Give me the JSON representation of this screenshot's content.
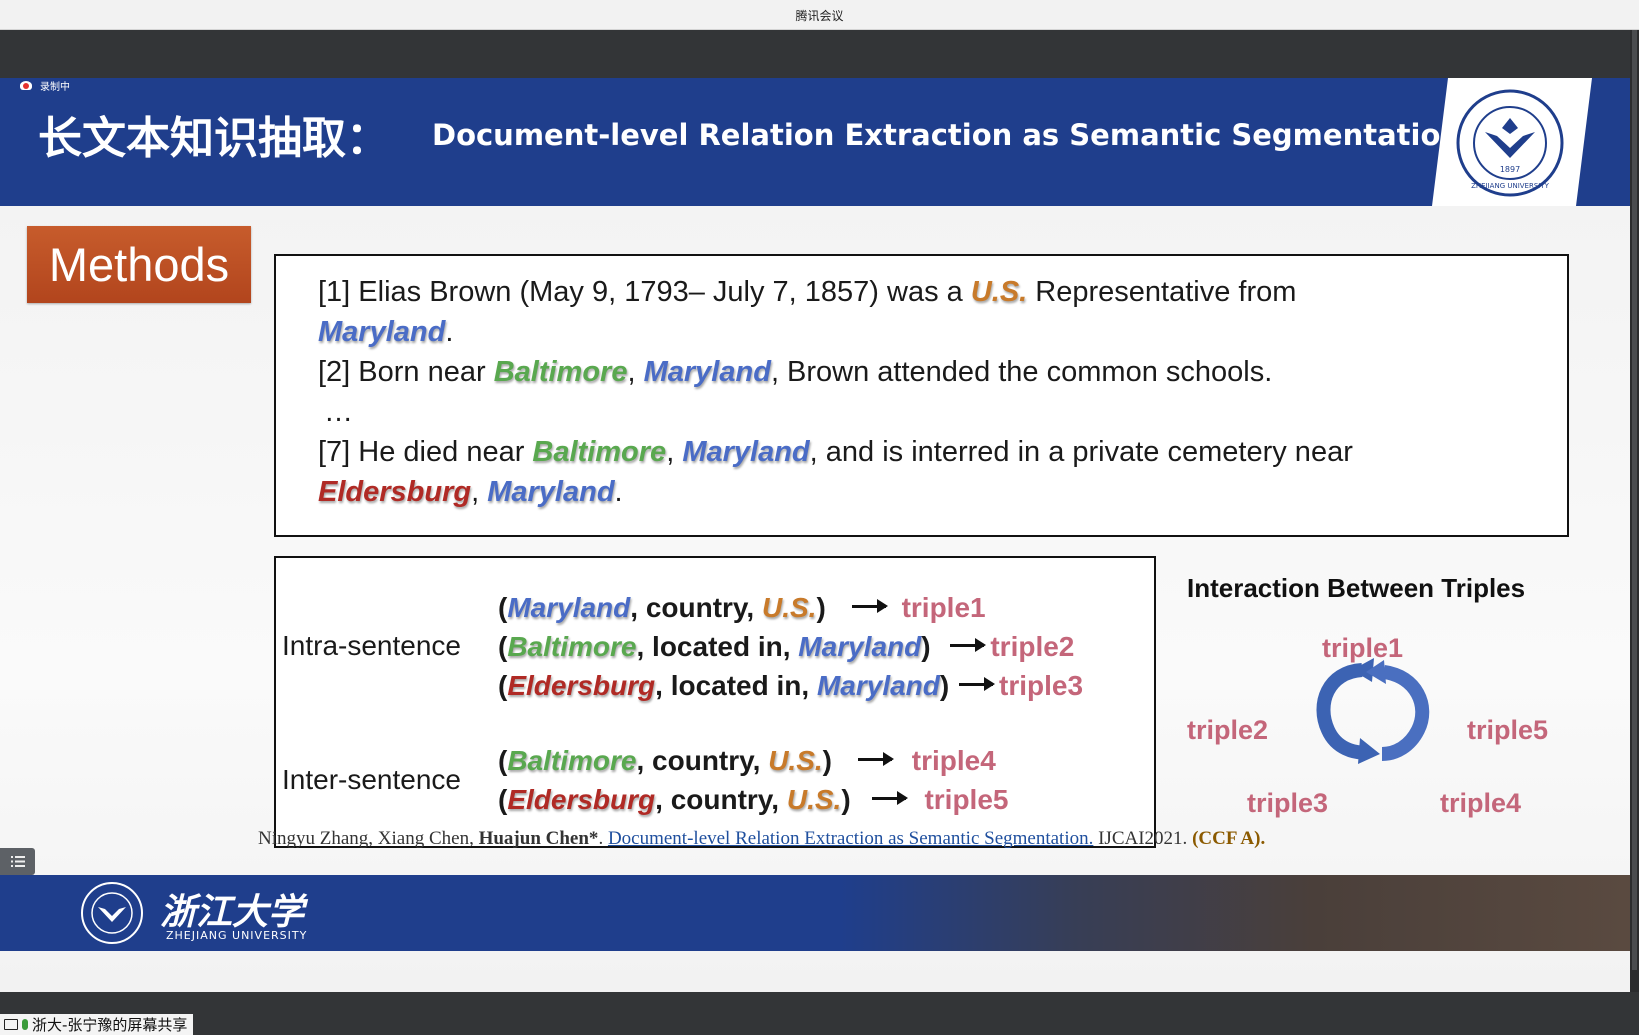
{
  "app": {
    "title": "腾讯会议",
    "share_label": "浙大-张宁豫的屏幕共享",
    "recording": "录制中"
  },
  "slide": {
    "title_zh": "长文本知识抽取：",
    "title_en": "Document-level Relation Extraction as Semantic Segmentation",
    "seal_text": "ZHEJIANG UNIVERSITY",
    "seal_year": "1897",
    "section": "Methods",
    "document": {
      "s1_a": "[1] Elias Brown (May 9, 1793– July 7, 1857) was a ",
      "s1_us": "U.S.",
      "s1_b": " Representative from",
      "s1_md": "Maryland",
      "s1_c": ".",
      "s2_a": "[2] Born near ",
      "s2_bal": "Baltimore",
      "s2_comma": ", ",
      "s2_md": "Maryland",
      "s2_b": ", Brown attended the common schools.",
      "ellipsis": "…",
      "s7_a": "[7] He died near  ",
      "s7_bal": "Baltimore",
      "s7_comma": ", ",
      "s7_md": "Maryland",
      "s7_b": ", and is interred in a private cemetery near",
      "s7_eld": "Eldersburg",
      "s7_comma2": ", ",
      "s7_md2": "Maryland",
      "s7_c": "."
    },
    "triples": {
      "intra_label": "Intra-sentence",
      "inter_label": "Inter-sentence",
      "rows": [
        {
          "open": "(",
          "head": "Maryland",
          "rel": ", country, ",
          "tail": "U.S.",
          "close": ")",
          "name": "triple1"
        },
        {
          "open": "(",
          "head": "Baltimore",
          "rel": ", located in, ",
          "tail": "Maryland",
          "close": ")",
          "name": "triple2"
        },
        {
          "open": "(",
          "head": "Eldersburg",
          "rel": ", located in, ",
          "tail": "Maryland",
          "close": ")",
          "name": "triple3"
        },
        {
          "open": "(",
          "head": "Baltimore",
          "rel": ", country, ",
          "tail": "U.S.",
          "close": ")",
          "name": "triple4"
        },
        {
          "open": "(",
          "head": "Eldersburg",
          "rel": ", country, ",
          "tail": "U.S.",
          "close": ")",
          "name": "triple5"
        }
      ]
    },
    "interaction": {
      "title": "Interaction Between Triples",
      "t1": "triple1",
      "t2": "triple2",
      "t3": "triple3",
      "t4": "triple4",
      "t5": "triple5"
    },
    "citation": {
      "authors": "Ningyu Zhang, Xiang Chen, ",
      "corr": "Huajun Chen*",
      "sep": ".  ",
      "link": "Document-level Relation Extraction as Semantic Segmentation.",
      "venue": " IJCAI2021. ",
      "ccf": "(CCF A)."
    },
    "footer": {
      "name_zh": "浙江大学",
      "name_en": "ZHEJIANG UNIVERSITY"
    }
  },
  "colors": {
    "header_blue": "#1f3e8c",
    "us": "#c87a2a",
    "maryland": "#4a6cc6",
    "baltimore": "#59a84f",
    "eldersburg": "#b02a25",
    "triple": "#c4667a",
    "methods": "#b84c22"
  },
  "icons": {
    "recording": "recording-icon",
    "menu": "list-menu-icon",
    "screen": "screen-share-icon",
    "mic": "microphone-icon",
    "cycle": "cycle-arrows-icon"
  }
}
